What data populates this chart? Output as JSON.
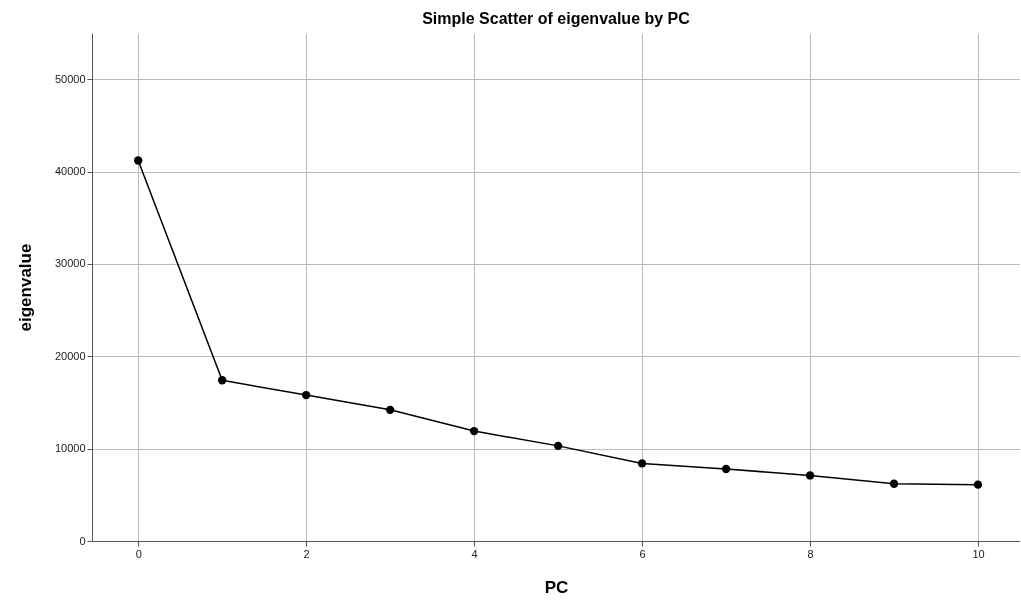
{
  "chart_data": {
    "type": "line",
    "title": "Simple Scatter of eigenvalue by PC",
    "xlabel": "PC",
    "ylabel": "eigenvalue",
    "x": [
      0,
      1,
      2,
      3,
      4,
      5,
      6,
      7,
      8,
      9,
      10
    ],
    "series": [
      {
        "color": "#000000",
        "values": [
          41200,
          17400,
          15800,
          14200,
          11900,
          10300,
          8400,
          7800,
          7100,
          6200,
          6100
        ]
      }
    ],
    "xlim": [
      -0.55,
      10.5
    ],
    "xticks": [
      0,
      2,
      4,
      6,
      8,
      10
    ],
    "ylim": [
      0,
      55000
    ],
    "yticks": [
      0,
      10000,
      20000,
      30000,
      40000,
      50000
    ],
    "grid": true,
    "marker": "circle",
    "line_style": "solid"
  }
}
